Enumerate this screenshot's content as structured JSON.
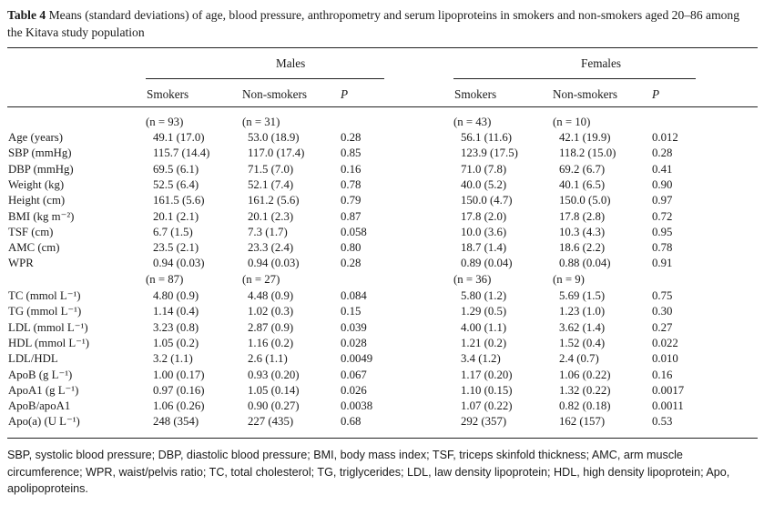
{
  "caption": {
    "label": "Table 4",
    "text": "Means (standard deviations) of age, blood pressure, anthropometry and serum lipoproteins in smokers and non-smokers aged 20–86 among the Kitava study population"
  },
  "groups": {
    "males": "Males",
    "females": "Females"
  },
  "columns": {
    "smokers": "Smokers",
    "non_smokers": "Non-smokers",
    "p": "P"
  },
  "n_rows": [
    {
      "m_s": "(n = 93)",
      "m_n": "(n = 31)",
      "f_s": "(n = 43)",
      "f_n": "(n = 10)"
    },
    {
      "m_s": "(n = 87)",
      "m_n": "(n = 27)",
      "f_s": "(n = 36)",
      "f_n": "(n = 9)"
    }
  ],
  "rows_a": [
    {
      "label": "Age (years)",
      "m_s": "49.1 (17.0)",
      "m_n": "53.0 (18.9)",
      "m_p": "0.28",
      "f_s": "56.1 (11.6)",
      "f_n": "42.1 (19.9)",
      "f_p": "0.012"
    },
    {
      "label": "SBP (mmHg)",
      "m_s": "115.7 (14.4)",
      "m_n": "117.0 (17.4)",
      "m_p": "0.85",
      "f_s": "123.9 (17.5)",
      "f_n": "118.2 (15.0)",
      "f_p": "0.28"
    },
    {
      "label": "DBP (mmHg)",
      "m_s": "69.5 (6.1)",
      "m_n": "71.5 (7.0)",
      "m_p": "0.16",
      "f_s": "71.0 (7.8)",
      "f_n": "69.2 (6.7)",
      "f_p": "0.41"
    },
    {
      "label": "Weight (kg)",
      "m_s": "52.5 (6.4)",
      "m_n": "52.1 (7.4)",
      "m_p": "0.78",
      "f_s": "40.0 (5.2)",
      "f_n": "40.1 (6.5)",
      "f_p": "0.90"
    },
    {
      "label": "Height (cm)",
      "m_s": "161.5 (5.6)",
      "m_n": "161.2 (5.6)",
      "m_p": "0.79",
      "f_s": "150.0 (4.7)",
      "f_n": "150.0 (5.0)",
      "f_p": "0.97"
    },
    {
      "label": "BMI (kg m⁻²)",
      "m_s": "20.1 (2.1)",
      "m_n": "20.1 (2.3)",
      "m_p": "0.87",
      "f_s": "17.8 (2.0)",
      "f_n": "17.8 (2.8)",
      "f_p": "0.72"
    },
    {
      "label": "TSF (cm)",
      "m_s": "6.7 (1.5)",
      "m_n": "7.3 (1.7)",
      "m_p": "0.058",
      "f_s": "10.0 (3.6)",
      "f_n": "10.3 (4.3)",
      "f_p": "0.95"
    },
    {
      "label": "AMC (cm)",
      "m_s": "23.5 (2.1)",
      "m_n": "23.3 (2.4)",
      "m_p": "0.80",
      "f_s": "18.7 (1.4)",
      "f_n": "18.6 (2.2)",
      "f_p": "0.78"
    },
    {
      "label": "WPR",
      "m_s": "0.94 (0.03)",
      "m_n": "0.94 (0.03)",
      "m_p": "0.28",
      "f_s": "0.89 (0.04)",
      "f_n": "0.88 (0.04)",
      "f_p": "0.91"
    }
  ],
  "rows_b": [
    {
      "label": "TC (mmol L⁻¹)",
      "m_s": "4.80 (0.9)",
      "m_n": "4.48 (0.9)",
      "m_p": "0.084",
      "f_s": "5.80 (1.2)",
      "f_n": "5.69 (1.5)",
      "f_p": "0.75"
    },
    {
      "label": "TG (mmol L⁻¹)",
      "m_s": "1.14 (0.4)",
      "m_n": "1.02 (0.3)",
      "m_p": "0.15",
      "f_s": "1.29 (0.5)",
      "f_n": "1.23 (1.0)",
      "f_p": "0.30"
    },
    {
      "label": "LDL (mmol L⁻¹)",
      "m_s": "3.23 (0.8)",
      "m_n": "2.87 (0.9)",
      "m_p": "0.039",
      "f_s": "4.00 (1.1)",
      "f_n": "3.62 (1.4)",
      "f_p": "0.27"
    },
    {
      "label": "HDL (mmol L⁻¹)",
      "m_s": "1.05 (0.2)",
      "m_n": "1.16 (0.2)",
      "m_p": "0.028",
      "f_s": "1.21 (0.2)",
      "f_n": "1.52 (0.4)",
      "f_p": "0.022"
    },
    {
      "label": "LDL/HDL",
      "m_s": "3.2 (1.1)",
      "m_n": "2.6 (1.1)",
      "m_p": "0.0049",
      "f_s": "3.4 (1.2)",
      "f_n": "2.4 (0.7)",
      "f_p": "0.010"
    },
    {
      "label": "ApoB (g L⁻¹)",
      "m_s": "1.00 (0.17)",
      "m_n": "0.93 (0.20)",
      "m_p": "0.067",
      "f_s": "1.17 (0.20)",
      "f_n": "1.06 (0.22)",
      "f_p": "0.16"
    },
    {
      "label": "ApoA1 (g L⁻¹)",
      "m_s": "0.97 (0.16)",
      "m_n": "1.05 (0.14)",
      "m_p": "0.026",
      "f_s": "1.10 (0.15)",
      "f_n": "1.32 (0.22)",
      "f_p": "0.0017"
    },
    {
      "label": "ApoB/apoA1",
      "m_s": "1.06 (0.26)",
      "m_n": "0.90 (0.27)",
      "m_p": "0.0038",
      "f_s": "1.07 (0.22)",
      "f_n": "0.82 (0.18)",
      "f_p": "0.0011"
    },
    {
      "label": "Apo(a) (U L⁻¹)",
      "m_s": "248 (354)",
      "m_n": "227 (435)",
      "m_p": "0.68",
      "f_s": "292 (357)",
      "f_n": "162 (157)",
      "f_p": "0.53"
    }
  ],
  "footnote": "SBP, systolic blood pressure; DBP, diastolic blood pressure; BMI, body mass index; TSF, triceps skinfold thickness; AMC, arm muscle circumference; WPR, waist/pelvis ratio; TC, total cholesterol; TG, triglycerides; LDL, law density lipoprotein; HDL, high density lipoprotein; Apo, apolipoproteins."
}
